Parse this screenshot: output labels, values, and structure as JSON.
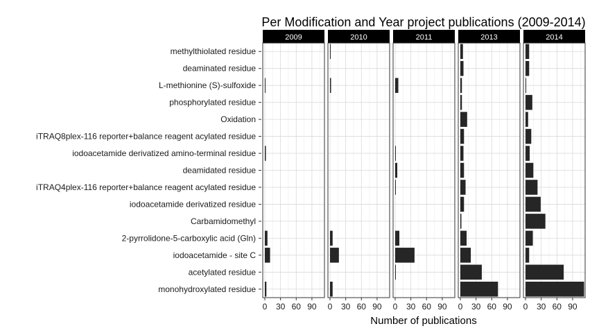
{
  "chart_data": {
    "type": "bar",
    "orientation": "horizontal",
    "title": "Per Modification and Year project publications (2009-2014)",
    "xlabel": "Number of publications",
    "ylabel": "",
    "xlim": [
      0,
      110
    ],
    "xticks": [
      0,
      30,
      60,
      90
    ],
    "grid": true,
    "legend": "none",
    "bar_color": "#262626",
    "strip_color": "#000000",
    "categories": [
      "methylthiolated residue",
      "deaminated residue",
      "L-methionine (S)-sulfoxide",
      "phosphorylated residue",
      "Oxidation",
      "iTRAQ8plex-116 reporter+balance reagent acylated residue",
      "iodoacetamide derivatized amino-terminal residue",
      "deamidated residue",
      "iTRAQ4plex-116 reporter+balance reagent acylated residue",
      "iodoacetamide derivatized residue",
      "Carbamidomethyl",
      "2-pyrrolidone-5-carboxylic acid (Gln)",
      "iodoacetamide - site C",
      "acetylated residue",
      "monohydroxylated residue"
    ],
    "series": [
      {
        "name": "2009",
        "values": [
          0,
          0,
          1,
          0,
          0,
          0,
          2,
          0,
          0,
          0,
          0,
          5,
          10,
          0,
          3
        ]
      },
      {
        "name": "2010",
        "values": [
          1,
          0,
          2,
          0,
          0,
          0,
          0,
          0,
          0,
          0,
          0,
          5,
          17,
          0,
          5
        ]
      },
      {
        "name": "2011",
        "values": [
          0,
          0,
          6,
          0,
          0,
          0,
          1,
          4,
          1,
          0,
          0,
          8,
          37,
          1,
          0
        ]
      },
      {
        "name": "2013",
        "values": [
          5,
          6,
          3,
          3,
          13,
          7,
          6,
          7,
          10,
          7,
          2,
          12,
          20,
          41,
          72
        ]
      },
      {
        "name": "2014",
        "values": [
          7,
          7,
          1,
          13,
          5,
          11,
          8,
          15,
          23,
          29,
          38,
          14,
          7,
          73,
          112
        ]
      }
    ]
  }
}
